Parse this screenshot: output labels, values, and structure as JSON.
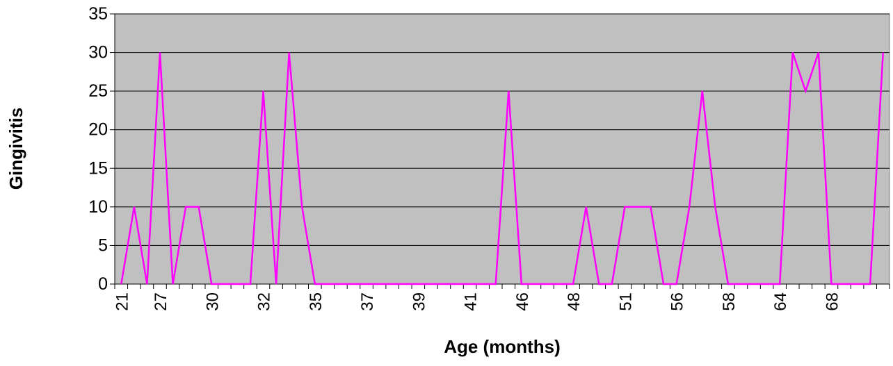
{
  "chart_data": {
    "type": "line",
    "x_label": "Age (months)",
    "y_label": "Gingivitis",
    "categories": [
      "21",
      null,
      null,
      "27",
      null,
      null,
      null,
      "30",
      null,
      null,
      null,
      "32",
      null,
      null,
      null,
      "35",
      null,
      null,
      null,
      "37",
      null,
      null,
      null,
      "39",
      null,
      null,
      null,
      "41",
      null,
      null,
      null,
      "46",
      null,
      null,
      null,
      "48",
      null,
      null,
      null,
      "51",
      null,
      null,
      null,
      "56",
      null,
      null,
      null,
      "58",
      null,
      null,
      null,
      "64",
      null,
      null,
      null,
      "68",
      null,
      null,
      null,
      null
    ],
    "series": [
      {
        "color": "#ff00ff",
        "values": [
          0,
          10,
          0,
          30,
          0,
          10,
          10,
          0,
          0,
          0,
          0,
          25,
          0,
          30,
          10,
          0,
          0,
          0,
          0,
          0,
          0,
          0,
          0,
          0,
          0,
          0,
          0,
          0,
          0,
          0,
          25,
          0,
          0,
          0,
          0,
          0,
          10,
          0,
          0,
          10,
          10,
          10,
          0,
          0,
          10,
          25,
          10,
          0,
          0,
          0,
          0,
          0,
          30,
          25,
          30,
          0,
          0,
          0,
          0,
          30
        ]
      }
    ],
    "ylim": [
      0,
      35
    ],
    "yticks": [
      0,
      5,
      10,
      15,
      20,
      25,
      30,
      35
    ],
    "grid": true,
    "plot_background": "#c0c0c0"
  }
}
